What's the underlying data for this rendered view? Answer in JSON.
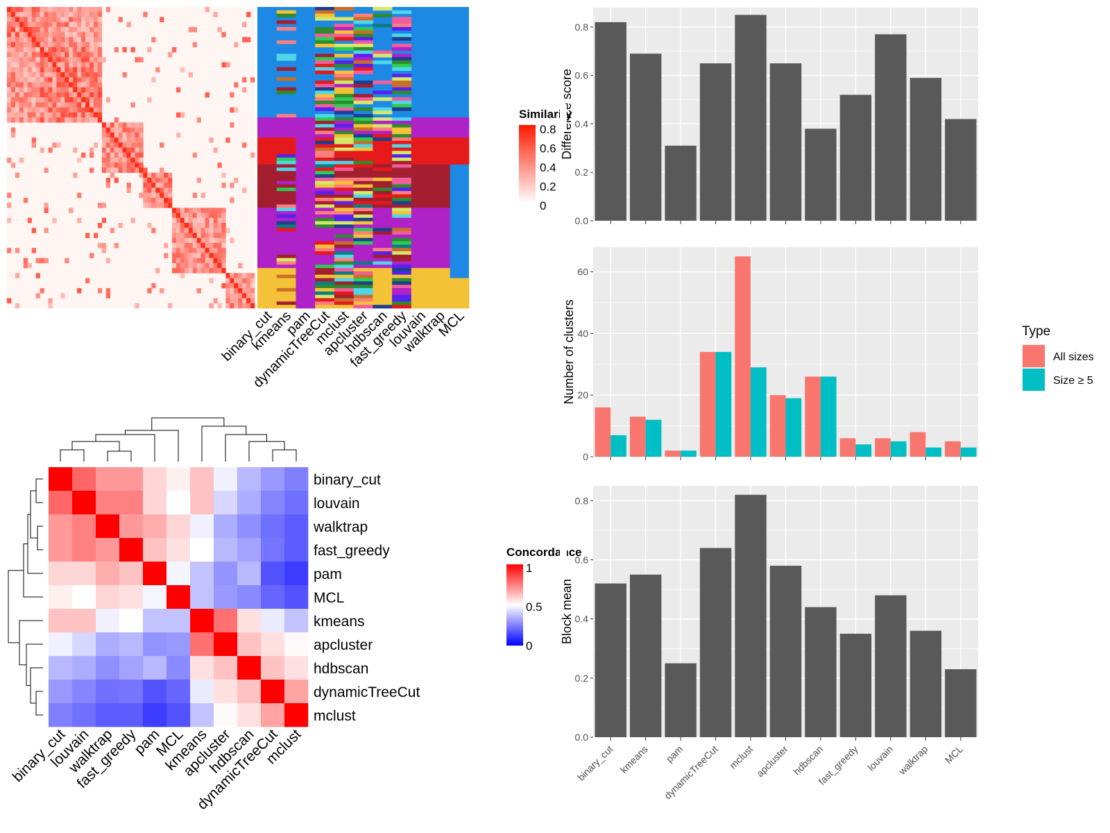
{
  "methods_bar": [
    "binary_cut",
    "kmeans",
    "pam",
    "dynamicTreeCut",
    "mclust",
    "apcluster",
    "hdbscan",
    "fast_greedy",
    "louvain",
    "walktrap",
    "MCL"
  ],
  "methods_heat": [
    "binary_cut",
    "louvain",
    "walktrap",
    "fast_greedy",
    "pam",
    "MCL",
    "kmeans",
    "apcluster",
    "hdbscan",
    "dynamicTreeCut",
    "mclust"
  ],
  "similarity_legend": {
    "title": "Similarity",
    "ticks": [
      "0.8",
      "0.6",
      "0.4",
      "0.2",
      "0"
    ]
  },
  "concordance_legend": {
    "title": "Concordance",
    "ticks": [
      "1",
      "0.5",
      "0"
    ]
  },
  "chart_data": [
    {
      "type": "bar",
      "ylabel": "Difference score",
      "categories": [
        "binary_cut",
        "kmeans",
        "pam",
        "dynamicTreeCut",
        "mclust",
        "apcluster",
        "hdbscan",
        "fast_greedy",
        "louvain",
        "walktrap",
        "MCL"
      ],
      "values": [
        0.82,
        0.69,
        0.31,
        0.65,
        0.85,
        0.65,
        0.38,
        0.52,
        0.77,
        0.59,
        0.42
      ],
      "ylim": [
        0,
        0.88
      ],
      "yticks": [
        "0.0",
        "0.2",
        "0.4",
        "0.6",
        "0.8"
      ],
      "grid": true
    },
    {
      "type": "bar",
      "ylabel": "Number of clusters",
      "categories": [
        "binary_cut",
        "kmeans",
        "pam",
        "dynamicTreeCut",
        "mclust",
        "apcluster",
        "hdbscan",
        "fast_greedy",
        "louvain",
        "walktrap",
        "MCL"
      ],
      "series": [
        {
          "name": "All sizes",
          "color": "#F8766D",
          "values": [
            16,
            13,
            2,
            34,
            65,
            20,
            26,
            6,
            6,
            8,
            5
          ]
        },
        {
          "name": "Size ≥ 5",
          "color": "#00BFC4",
          "values": [
            7,
            12,
            2,
            34,
            29,
            19,
            26,
            4,
            5,
            3,
            3
          ]
        }
      ],
      "legend": {
        "title": "Type",
        "position": "right"
      },
      "ylim": [
        0,
        68
      ],
      "yticks": [
        "0",
        "20",
        "40",
        "60"
      ],
      "grid": true
    },
    {
      "type": "bar",
      "ylabel": "Block mean",
      "categories": [
        "binary_cut",
        "kmeans",
        "pam",
        "dynamicTreeCut",
        "mclust",
        "apcluster",
        "hdbscan",
        "fast_greedy",
        "louvain",
        "walktrap",
        "MCL"
      ],
      "values": [
        0.52,
        0.55,
        0.25,
        0.64,
        0.82,
        0.58,
        0.44,
        0.35,
        0.48,
        0.36,
        0.23
      ],
      "ylim": [
        0,
        0.85
      ],
      "yticks": [
        "0.0",
        "0.2",
        "0.4",
        "0.6",
        "0.8"
      ],
      "grid": true
    },
    {
      "type": "heatmap",
      "legend_title": "Concordance",
      "rows": [
        "binary_cut",
        "louvain",
        "walktrap",
        "fast_greedy",
        "pam",
        "MCL",
        "kmeans",
        "apcluster",
        "hdbscan",
        "dynamicTreeCut",
        "mclust"
      ],
      "columns": [
        "binary_cut",
        "louvain",
        "walktrap",
        "fast_greedy",
        "pam",
        "MCL",
        "kmeans",
        "apcluster",
        "hdbscan",
        "dynamicTreeCut",
        "mclust"
      ],
      "values": [
        [
          1.0,
          0.8,
          0.7,
          0.7,
          0.58,
          0.53,
          0.62,
          0.47,
          0.36,
          0.3,
          0.25
        ],
        [
          0.8,
          1.0,
          0.75,
          0.75,
          0.58,
          0.5,
          0.62,
          0.42,
          0.34,
          0.26,
          0.22
        ],
        [
          0.7,
          0.75,
          1.0,
          0.7,
          0.66,
          0.58,
          0.47,
          0.34,
          0.28,
          0.22,
          0.18
        ],
        [
          0.7,
          0.75,
          0.7,
          1.0,
          0.62,
          0.56,
          0.5,
          0.36,
          0.32,
          0.23,
          0.18
        ],
        [
          0.58,
          0.58,
          0.66,
          0.62,
          1.0,
          0.48,
          0.38,
          0.29,
          0.36,
          0.16,
          0.12
        ],
        [
          0.53,
          0.5,
          0.58,
          0.56,
          0.48,
          1.0,
          0.38,
          0.3,
          0.27,
          0.2,
          0.16
        ],
        [
          0.62,
          0.62,
          0.47,
          0.5,
          0.38,
          0.38,
          1.0,
          0.78,
          0.56,
          0.46,
          0.38
        ],
        [
          0.47,
          0.42,
          0.34,
          0.36,
          0.29,
          0.3,
          0.78,
          1.0,
          0.62,
          0.56,
          0.51
        ],
        [
          0.36,
          0.34,
          0.28,
          0.32,
          0.36,
          0.27,
          0.56,
          0.62,
          1.0,
          0.62,
          0.56
        ],
        [
          0.3,
          0.26,
          0.22,
          0.23,
          0.16,
          0.2,
          0.46,
          0.56,
          0.62,
          1.0,
          0.68
        ],
        [
          0.25,
          0.22,
          0.18,
          0.18,
          0.12,
          0.16,
          0.38,
          0.51,
          0.56,
          0.68,
          1.0
        ]
      ]
    },
    {
      "type": "heatmap",
      "legend_title": "Similarity",
      "columns": [
        "binary_cut",
        "kmeans",
        "pam",
        "dynamicTreeCut",
        "mclust",
        "apcluster",
        "hdbscan",
        "fast_greedy",
        "louvain",
        "walktrap",
        "MCL"
      ],
      "values": "term similarity matrix (approx. 260 terms) with cluster assignment columns, not individually labeled"
    }
  ]
}
